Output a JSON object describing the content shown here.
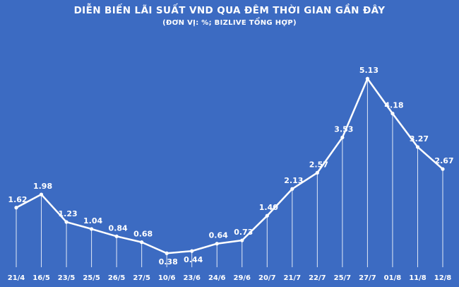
{
  "page": {
    "title": "DIỄN BIẾN LÃI SUẤT VND QUA ĐÊM THỜI GIAN GẦN ĐÂY",
    "subtitle": "(ĐƠN VỊ: %; BIZLIVE TỔNG HỢP)"
  },
  "colors": {
    "background": "#3c6bc2",
    "line": "#ffffff",
    "marker": "#ffffff",
    "text": "#ffffff",
    "drop_line": "#ffffff"
  },
  "chart_data": {
    "type": "line",
    "categories": [
      "21/4",
      "16/5",
      "23/5",
      "25/5",
      "26/5",
      "27/5",
      "10/6",
      "23/6",
      "24/6",
      "29/6",
      "20/7",
      "21/7",
      "22/7",
      "25/7",
      "27/7",
      "01/8",
      "11/8",
      "12/8"
    ],
    "values": [
      1.62,
      1.98,
      1.23,
      1.04,
      0.84,
      0.68,
      0.38,
      0.44,
      0.64,
      0.73,
      1.4,
      2.13,
      2.57,
      3.53,
      5.13,
      4.18,
      3.27,
      2.67
    ],
    "title": "DIỄN BIẾN LÃI SUẤT VND QUA ĐÊM THỜI GIAN GẦN ĐÂY",
    "subtitle": "(ĐƠN VỊ: %; BIZLIVE TỔNG HỢP)",
    "xlabel": "",
    "ylabel": "",
    "ylim": [
      0,
      5.5
    ],
    "grid": false,
    "legend": "none",
    "data_labels": true,
    "drop_lines": true,
    "label_decimals": 2
  }
}
